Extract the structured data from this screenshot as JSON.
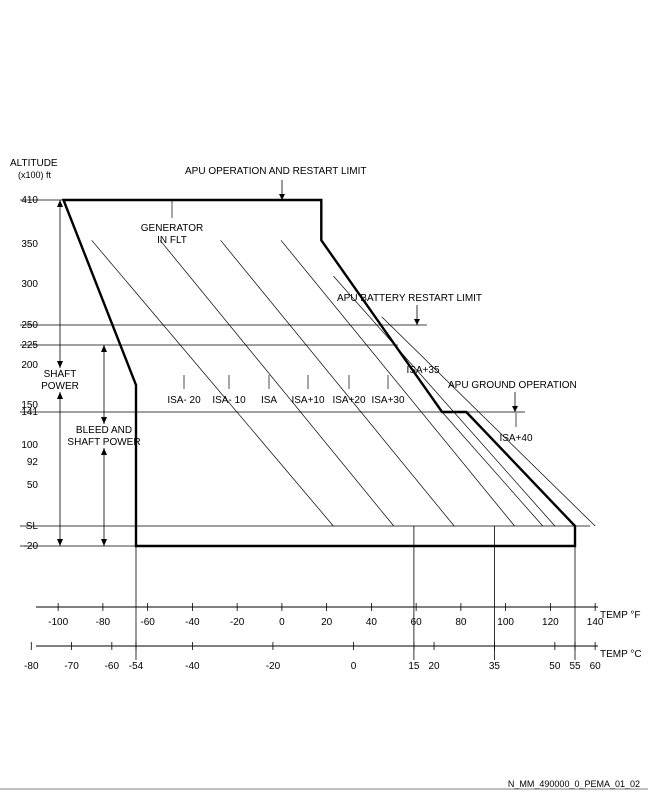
{
  "chart_data": {
    "type": "line",
    "title": "",
    "y_axis": {
      "label_line1": "ALTITUDE",
      "label_line2": "(x100) ft",
      "ticks": [
        {
          "label": "410",
          "value": 410
        },
        {
          "label": "350",
          "value": 350
        },
        {
          "label": "300",
          "value": 300
        },
        {
          "label": "250",
          "value": 250
        },
        {
          "label": "225",
          "value": 225
        },
        {
          "label": "200",
          "value": 200
        },
        {
          "label": "150",
          "value": 150
        },
        {
          "label": "141",
          "value": 141
        },
        {
          "label": "100",
          "value": 100
        },
        {
          "label": "92",
          "value": 92
        },
        {
          "label": "50",
          "value": 50
        },
        {
          "label": "SL",
          "value": 0
        },
        {
          "label": "-20",
          "value": -20
        }
      ]
    },
    "x_axis_f": {
      "unit_label": "TEMP °F",
      "ticks": [
        "-100",
        "-80",
        "-60",
        "-40",
        "-20",
        "0",
        "20",
        "40",
        "60",
        "80",
        "100",
        "120",
        "140"
      ]
    },
    "x_axis_c": {
      "unit_label": "TEMP °C",
      "ticks": [
        {
          "label": "-80",
          "value": -80
        },
        {
          "label": "-70",
          "value": -70
        },
        {
          "label": "-60",
          "value": -60
        },
        {
          "label": "-54",
          "value": -54
        },
        {
          "label": "-40",
          "value": -40
        },
        {
          "label": "-20",
          "value": -20
        },
        {
          "label": "0",
          "value": 0
        },
        {
          "label": "15",
          "value": 15
        },
        {
          "label": "20",
          "value": 20
        },
        {
          "label": "35",
          "value": 35
        },
        {
          "label": "50",
          "value": 50
        },
        {
          "label": "55",
          "value": 55
        },
        {
          "label": "60",
          "value": 60
        }
      ]
    },
    "envelope_c": [
      [
        -72,
        410
      ],
      [
        -54,
        175
      ],
      [
        -54,
        -20
      ],
      [
        55,
        -20
      ],
      [
        55,
        0
      ],
      [
        28,
        141
      ],
      [
        22,
        141
      ],
      [
        -8,
        355
      ],
      [
        -8,
        410
      ]
    ],
    "isa_lines": [
      {
        "label": "ISA- 20",
        "points_c": [
          [
            -65,
            355
          ],
          [
            -5,
            0
          ]
        ]
      },
      {
        "label": "ISA- 10",
        "points_c": [
          [
            -48,
            355
          ],
          [
            10,
            0
          ]
        ]
      },
      {
        "label": "ISA",
        "points_c": [
          [
            -33,
            355
          ],
          [
            25,
            0
          ]
        ]
      },
      {
        "label": "ISA+10",
        "points_c": [
          [
            -18,
            355
          ],
          [
            40,
            0
          ]
        ]
      },
      {
        "label": "ISA+20",
        "points_c": [
          [
            -5,
            310
          ],
          [
            50,
            0
          ]
        ]
      },
      {
        "label": "ISA+30",
        "points_c": [
          [
            7,
            260
          ],
          [
            60,
            0
          ]
        ]
      },
      {
        "label": "ISA+35",
        "points_c": [
          [
            22,
            141
          ],
          [
            47,
            0
          ]
        ]
      },
      {
        "label": "ISA+40",
        "points_c": [
          [
            28,
            141
          ],
          [
            55,
            0
          ]
        ]
      }
    ]
  },
  "annotations": {
    "apu_restart_limit": "APU OPERATION AND RESTART LIMIT",
    "generator_line1": "GENERATOR",
    "generator_line2": "IN FLT",
    "battery_restart_limit": "APU BATTERY RESTART LIMIT",
    "ground_operation": "APU GROUND OPERATION",
    "shaft_line1": "SHAFT",
    "shaft_line2": "POWER",
    "bleed_line1": "BLEED AND",
    "bleed_line2": "SHAFT POWER"
  },
  "figure_ref": "N_MM_490000_0_PEMA_01_02"
}
